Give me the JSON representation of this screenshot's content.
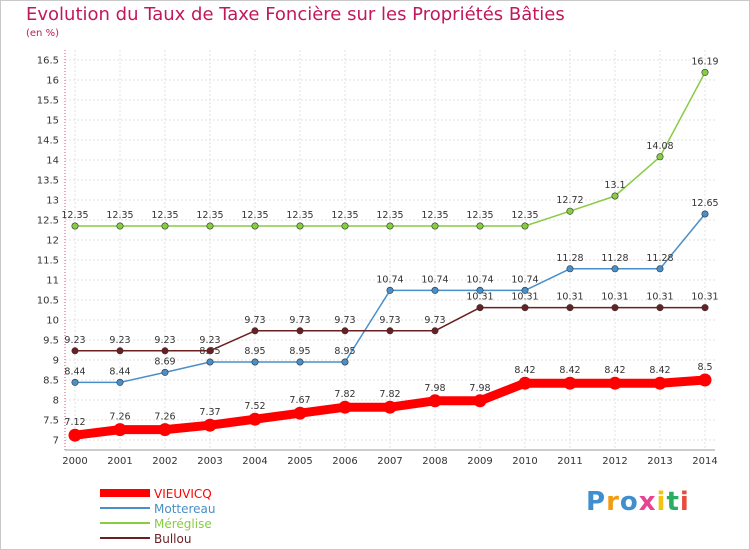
{
  "chart_data": {
    "type": "line",
    "title": "Evolution du Taux de Taxe Foncière sur les Propriétés Bâties",
    "subtitle": "(en %)",
    "x": [
      "2000",
      "2001",
      "2002",
      "2003",
      "2004",
      "2005",
      "2006",
      "2007",
      "2008",
      "2009",
      "2010",
      "2011",
      "2012",
      "2013",
      "2014"
    ],
    "ylim": [
      7,
      16.5
    ],
    "yticks": [
      "7",
      "7.5",
      "8",
      "8.5",
      "9",
      "9.5",
      "10",
      "10.5",
      "11",
      "11.5",
      "12",
      "12.5",
      "13",
      "13.5",
      "14",
      "14.5",
      "15",
      "15.5",
      "16",
      "16.5"
    ],
    "grid": true,
    "legend_position": "bottom-left",
    "series": [
      {
        "name": "VIEUVICQ",
        "color": "#ff0000",
        "values": [
          7.12,
          7.26,
          7.26,
          7.37,
          7.52,
          7.67,
          7.82,
          7.82,
          7.98,
          7.98,
          8.42,
          8.42,
          8.42,
          8.42,
          8.5
        ],
        "labels": [
          "7.12",
          "7.26",
          "7.26",
          "7.37",
          "7.52",
          "7.67",
          "7.82",
          "7.82",
          "7.98",
          "7.98",
          "8.42",
          "8.42",
          "8.42",
          "8.42",
          "8.5"
        ]
      },
      {
        "name": "Mottereau",
        "color": "#4a8fc7",
        "values": [
          8.44,
          8.44,
          8.69,
          8.95,
          8.95,
          8.95,
          8.95,
          10.74,
          10.74,
          10.74,
          10.74,
          11.28,
          11.28,
          11.28,
          12.65
        ],
        "labels": [
          "8.44",
          "8.44",
          "8.69",
          "8.95",
          "8.95",
          "8.95",
          "8.95",
          "10.74",
          "10.74",
          "10.74",
          "10.74",
          "11.28",
          "11.28",
          "11.28",
          "12.65"
        ]
      },
      {
        "name": "Méréglise",
        "color": "#88cc44",
        "values": [
          12.35,
          12.35,
          12.35,
          12.35,
          12.35,
          12.35,
          12.35,
          12.35,
          12.35,
          12.35,
          12.35,
          12.72,
          13.1,
          14.08,
          16.19
        ],
        "labels": [
          "12.35",
          "12.35",
          "12.35",
          "12.35",
          "12.35",
          "12.35",
          "12.35",
          "12.35",
          "12.35",
          "12.35",
          "12.35",
          "12.72",
          "13.1",
          "14.08",
          "16.19"
        ]
      },
      {
        "name": "Bullou",
        "color": "#6b1f22",
        "values": [
          9.23,
          9.23,
          9.23,
          9.23,
          9.73,
          9.73,
          9.73,
          9.73,
          9.73,
          10.31,
          10.31,
          10.31,
          10.31,
          10.31,
          10.31
        ],
        "labels": [
          "9.23",
          "9.23",
          "9.23",
          "9.23",
          "9.73",
          "9.73",
          "9.73",
          "9.73",
          "9.73",
          "10.31",
          "10.31",
          "10.31",
          "10.31",
          "10.31",
          "10.31"
        ]
      }
    ]
  },
  "brand": {
    "letters": [
      "P",
      "r",
      "o",
      "x",
      "i",
      "t",
      "i"
    ],
    "colors": [
      "#3f8fd0",
      "#f39c12",
      "#3f8fd0",
      "#e84393",
      "#f1c40f",
      "#27ae60",
      "#e74c3c"
    ]
  }
}
